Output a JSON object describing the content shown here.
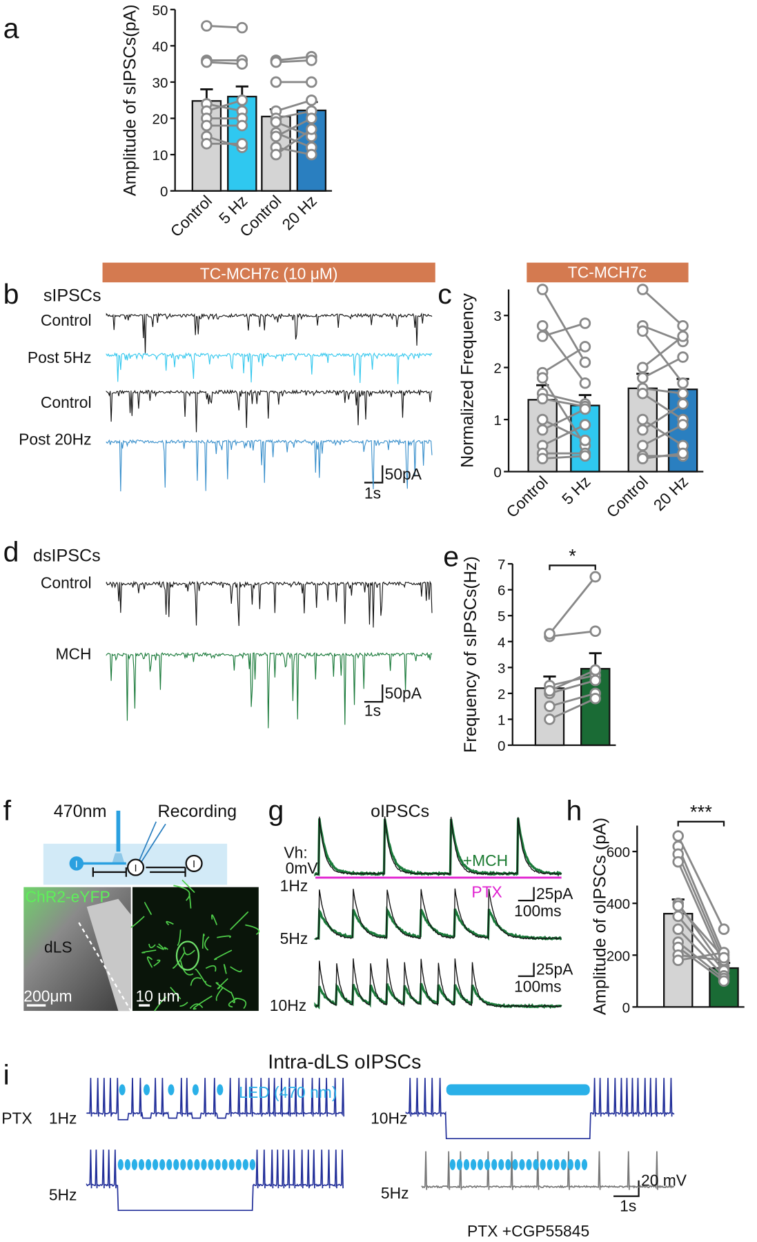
{
  "chart_data": [
    {
      "type": "bar",
      "ylabel": "Amplitude of sIPSCs(pA)",
      "categories": [
        "Control",
        "5 Hz",
        "Control",
        "20 Hz"
      ],
      "values": [
        24.8,
        26,
        20.5,
        22.2
      ],
      "errors": [
        3.2,
        2.8,
        2,
        2.3
      ],
      "colors": [
        "#d4d4d4",
        "#2fc8f0",
        "#d4d4d4",
        "#2a7fc0"
      ],
      "points": [
        [
          45.5,
          36,
          35.5,
          24,
          22,
          20,
          18,
          15,
          13
        ],
        [
          45,
          36,
          35,
          22,
          25,
          20,
          18,
          12,
          13
        ],
        [
          36,
          35.5,
          30,
          22,
          20,
          19,
          16,
          15,
          12,
          10
        ],
        [
          37,
          36,
          30,
          25,
          22,
          15,
          12,
          20,
          10,
          17
        ]
      ],
      "ylim": [
        0,
        50
      ],
      "yticks": [
        0,
        10,
        20,
        30,
        40,
        50
      ]
    },
    {
      "type": "bar",
      "banner": "TC-MCH7c",
      "ylabel": "Normalized Frequency",
      "categories": [
        "Control",
        "5 Hz",
        "Control",
        "20 Hz"
      ],
      "values": [
        1.38,
        1.27,
        1.6,
        1.58
      ],
      "errors": [
        0.28,
        0.2,
        0.28,
        0.2
      ],
      "colors": [
        "#d4d4d4",
        "#2fc8f0",
        "#d4d4d4",
        "#2a7fc0"
      ],
      "points": [
        [
          3.5,
          2.8,
          2.6,
          1.9,
          1.8,
          1.5,
          1.4,
          1.0,
          0.8,
          0.5,
          0.35,
          0.25
        ],
        [
          2.1,
          1.7,
          2.85,
          2.4,
          0.5,
          1.3,
          1.25,
          0.6,
          1.2,
          0.9,
          0.35,
          0.3
        ],
        [
          3.5,
          2.8,
          2.7,
          2.0,
          1.8,
          1.6,
          1.5,
          1.0,
          0.8,
          0.5,
          0.3,
          0.25
        ],
        [
          2.8,
          2.5,
          1.7,
          2.6,
          2.2,
          1.5,
          1.0,
          0.5,
          1.3,
          0.9,
          0.3,
          0.35
        ]
      ],
      "ylim": [
        0,
        3.5
      ],
      "yticks": [
        0,
        1,
        2,
        3
      ]
    },
    {
      "type": "bar",
      "ylabel": "Frequency of sIPSCs(Hz)",
      "significance": "*",
      "categories": [
        null,
        null
      ],
      "values": [
        2.2,
        2.95
      ],
      "errors": [
        0.45,
        0.6
      ],
      "colors": [
        "#d4d4d4",
        "#1a6b35"
      ],
      "points": [
        [
          4.2,
          4.3,
          2.3,
          2.0,
          1.5,
          1.0,
          2.1
        ],
        [
          4.4,
          6.5,
          2.7,
          2.5,
          2.0,
          1.8,
          2.9
        ]
      ],
      "ylim": [
        0,
        7
      ],
      "yticks": [
        0,
        1,
        2,
        3,
        4,
        5,
        6,
        7
      ]
    },
    {
      "type": "bar",
      "ylabel": "Amplitude of oIPSCs (pA)",
      "significance": "***",
      "categories": [
        null,
        null
      ],
      "values": [
        360,
        150
      ],
      "errors": [
        55,
        20
      ],
      "colors": [
        "#d4d4d4",
        "#1a6b35"
      ],
      "points": [
        [
          660,
          620,
          590,
          560,
          400,
          350,
          300,
          250,
          230,
          200,
          180,
          390
        ],
        [
          300,
          200,
          180,
          160,
          150,
          140,
          120,
          110,
          100,
          180,
          210,
          190
        ]
      ],
      "ylim": [
        0,
        700
      ],
      "yticks": [
        0,
        200,
        400,
        600
      ]
    }
  ],
  "letters": [
    "a",
    "b",
    "c",
    "d",
    "e",
    "f",
    "g",
    "h",
    "i"
  ],
  "b": {
    "banner": "TC-MCH7c (10 μM)",
    "title": "sIPSCs",
    "rows": [
      "Control",
      "Post 5Hz",
      "Control",
      "Post 20Hz"
    ],
    "scale_y": "50pA",
    "scale_x": "1s"
  },
  "d": {
    "title": "dsIPSCs",
    "rows": [
      "Control",
      "MCH"
    ],
    "scale_y": "50pA",
    "scale_x": "1s"
  },
  "f": {
    "light": "470nm",
    "electrode": "Recording",
    "cells": [
      "I",
      "I",
      "I"
    ],
    "stain": "ChR2-eYFP",
    "region": "dLS",
    "scale_left": "200μm",
    "scale_right": "10 μm"
  },
  "g": {
    "title": "oIPSCs",
    "hold": "Vh:",
    "hold_value": "0mV",
    "drug": "+MCH",
    "blocker": "PTX",
    "rates": [
      "1Hz",
      "5Hz",
      "10Hz"
    ],
    "scale_y": [
      "25pA",
      "25pA"
    ],
    "scale_x": [
      "100ms",
      "100ms"
    ]
  },
  "i": {
    "title": "Intra-dLS oIPSCs",
    "led": "LED (470 nm)",
    "condition": "PTX",
    "rates": [
      "1Hz",
      "10Hz",
      "5Hz",
      "5Hz"
    ],
    "scale_y": "20 mV",
    "scale_x": "1s",
    "condition2": "PTX +CGP55845"
  }
}
